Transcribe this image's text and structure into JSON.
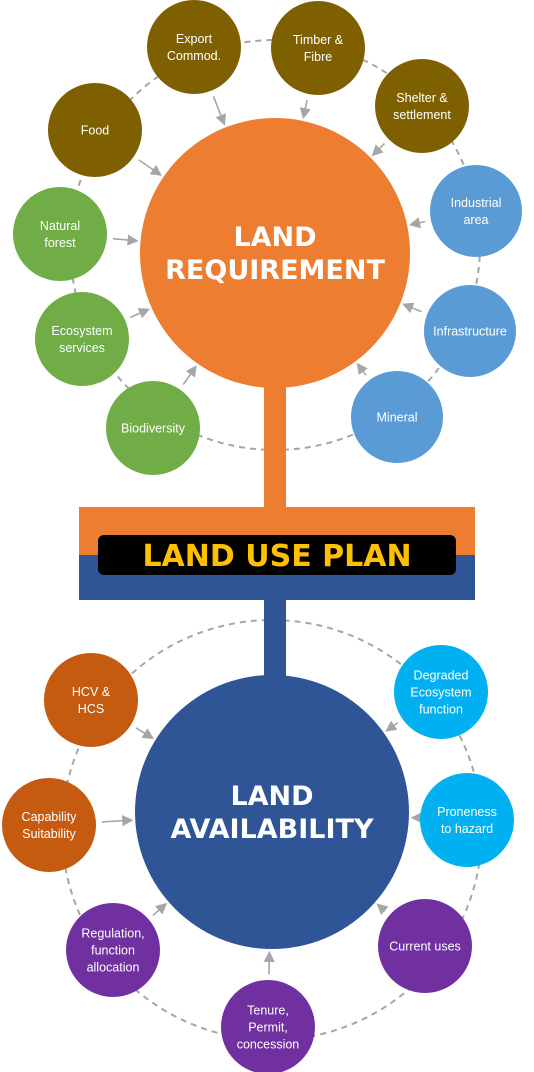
{
  "colors": {
    "requirement_hub": "#ed7d31",
    "availability_hub": "#2f5597",
    "brown": "#7f6000",
    "green": "#70ad47",
    "blue": "#5b9bd5",
    "orange_red": "#c55a11",
    "cyan": "#00b0f0",
    "purple": "#7030a0",
    "plan_text": "#ffc000",
    "plan_bar": "#000000",
    "ring": "#a6a6a6",
    "arrow": "#a6a6a6"
  },
  "requirement": {
    "hub_lines": [
      "LAND",
      "REQUIREMENT"
    ],
    "nodes": [
      {
        "id": "export",
        "lines": [
          "Export",
          "Commod."
        ],
        "color": "brown"
      },
      {
        "id": "timber",
        "lines": [
          "Timber &",
          "Fibre"
        ],
        "color": "brown"
      },
      {
        "id": "shelter",
        "lines": [
          "Shelter &",
          "settlement"
        ],
        "color": "brown"
      },
      {
        "id": "food",
        "lines": [
          "Food"
        ],
        "color": "brown"
      },
      {
        "id": "natural-forest",
        "lines": [
          "Natural",
          "forest"
        ],
        "color": "green"
      },
      {
        "id": "ecosystem-services",
        "lines": [
          "Ecosystem",
          "services"
        ],
        "color": "green"
      },
      {
        "id": "biodiversity",
        "lines": [
          "Biodiversity"
        ],
        "color": "green"
      },
      {
        "id": "industrial-area",
        "lines": [
          "Industrial",
          "area"
        ],
        "color": "blue"
      },
      {
        "id": "infrastructure",
        "lines": [
          "Infrastructure"
        ],
        "color": "blue"
      },
      {
        "id": "mineral",
        "lines": [
          "Mineral"
        ],
        "color": "blue"
      }
    ]
  },
  "plan": {
    "label": "LAND USE PLAN"
  },
  "availability": {
    "hub_lines": [
      "LAND",
      "AVAILABILITY"
    ],
    "nodes": [
      {
        "id": "hcv-hcs",
        "lines": [
          "HCV &",
          "HCS"
        ],
        "color": "orange_red"
      },
      {
        "id": "capability-suitability",
        "lines": [
          "Capability",
          "Suitability"
        ],
        "color": "orange_red"
      },
      {
        "id": "regulation",
        "lines": [
          "Regulation,",
          "function",
          "allocation"
        ],
        "color": "purple"
      },
      {
        "id": "tenure",
        "lines": [
          "Tenure,",
          "Permit,",
          "concession"
        ],
        "color": "purple"
      },
      {
        "id": "current-uses",
        "lines": [
          "Current uses"
        ],
        "color": "purple"
      },
      {
        "id": "proneness",
        "lines": [
          "Proneness",
          "to hazard"
        ],
        "color": "cyan"
      },
      {
        "id": "degraded",
        "lines": [
          "Degraded",
          "Ecosystem",
          "function"
        ],
        "color": "cyan"
      }
    ]
  }
}
